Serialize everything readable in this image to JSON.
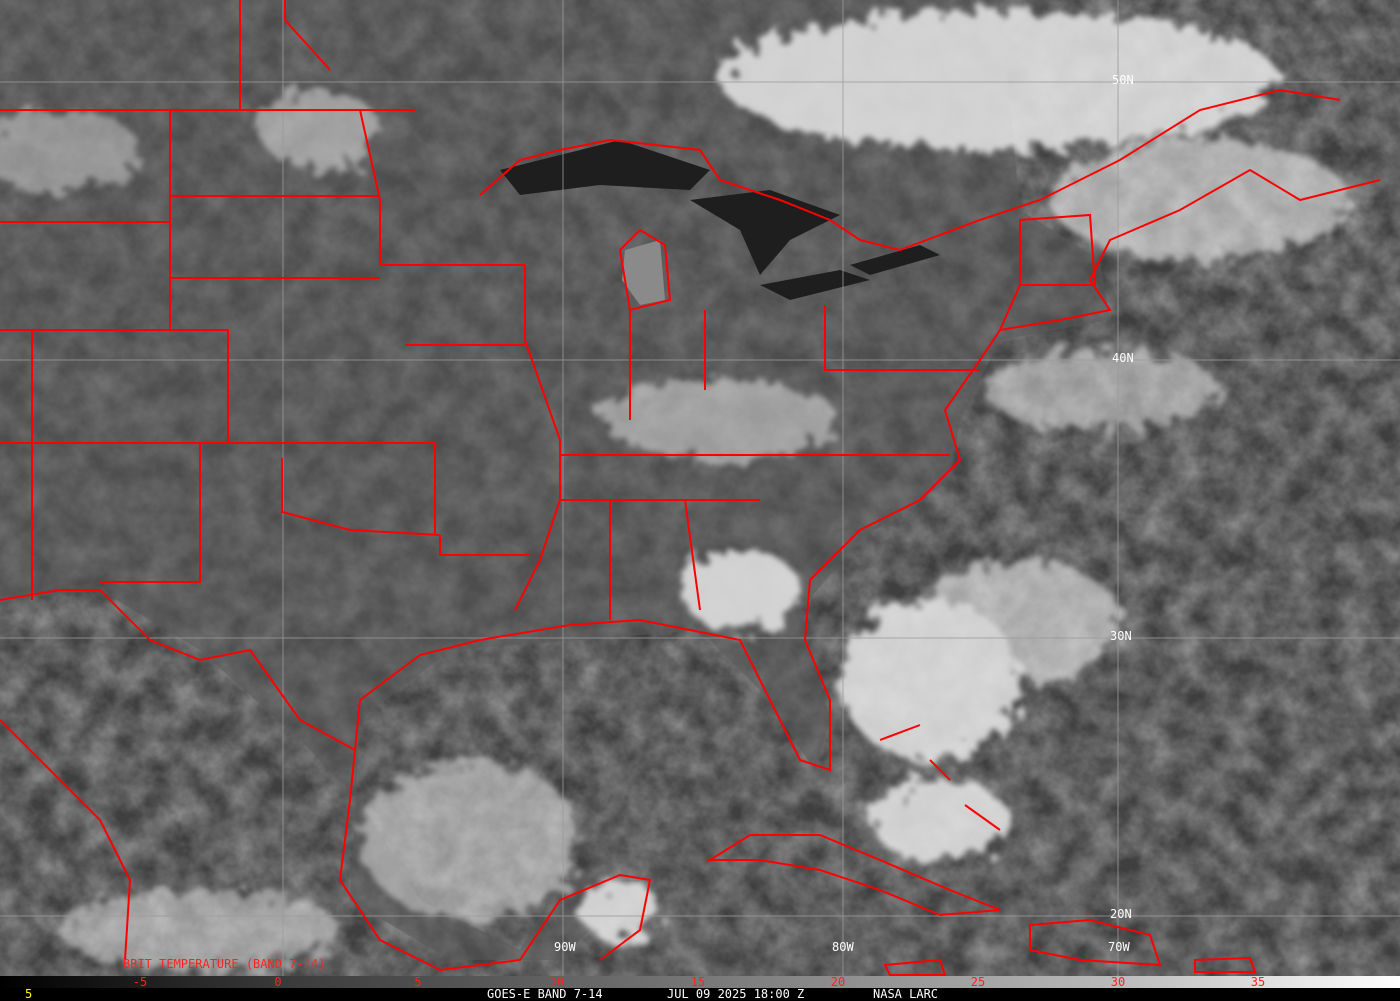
{
  "product_title": "BRIT TEMPERATURE (BAND 7-14)",
  "grid_labels": {
    "lat": [
      "50N",
      "40N",
      "30N",
      "20N"
    ],
    "lon": [
      "90W",
      "80W",
      "70W"
    ]
  },
  "scale_ticks": [
    "-5",
    "0",
    "5",
    "10",
    "15",
    "20",
    "25",
    "30",
    "35"
  ],
  "footer": {
    "frame_number": "5",
    "satellite": "GOES-E BAND 7-14",
    "timestamp": "JUL 09 2025 18:00 Z",
    "organization": "NASA LARC"
  },
  "colors": {
    "borders": "#ff0000",
    "grid": "#9a9a9a",
    "frame_number": "#ffff00"
  }
}
